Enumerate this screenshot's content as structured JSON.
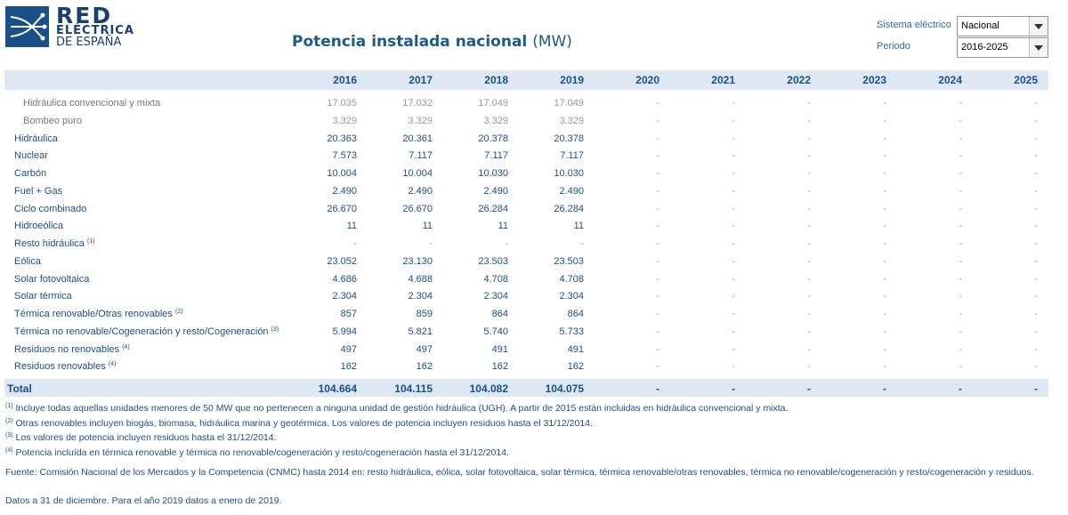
{
  "header": {
    "logo": {
      "line1": "RED",
      "line2": "ELÉCTRICA",
      "line3": "DE ESPAÑA"
    },
    "title": "Potencia instalada nacional",
    "unit": "(MW)"
  },
  "controls": [
    {
      "label": "Sistema eléctrico",
      "value": "Nacional"
    },
    {
      "label": "Periodo",
      "value": "2016-2025"
    }
  ],
  "table": {
    "columns": [
      "2016",
      "2017",
      "2018",
      "2019",
      "2020",
      "2021",
      "2022",
      "2023",
      "2024",
      "2025"
    ],
    "rows": [
      {
        "label": "Hidráulica convencional y mixta",
        "indent": true,
        "values": [
          "17.035",
          "17.032",
          "17.049",
          "17.049",
          "-",
          "-",
          "-",
          "-",
          "-",
          "-"
        ]
      },
      {
        "label": "Bombeo puro",
        "indent": true,
        "values": [
          "3.329",
          "3.329",
          "3.329",
          "3.329",
          "-",
          "-",
          "-",
          "-",
          "-",
          "-"
        ]
      },
      {
        "label": "Hidráulica",
        "values": [
          "20.363",
          "20.361",
          "20.378",
          "20.378",
          "-",
          "-",
          "-",
          "-",
          "-",
          "-"
        ]
      },
      {
        "label": "Nuclear",
        "values": [
          "7.573",
          "7.117",
          "7.117",
          "7.117",
          "-",
          "-",
          "-",
          "-",
          "-",
          "-"
        ]
      },
      {
        "label": "Carbón",
        "values": [
          "10.004",
          "10.004",
          "10.030",
          "10.030",
          "-",
          "-",
          "-",
          "-",
          "-",
          "-"
        ]
      },
      {
        "label": "Fuel + Gas",
        "values": [
          "2.490",
          "2.490",
          "2.490",
          "2.490",
          "-",
          "-",
          "-",
          "-",
          "-",
          "-"
        ]
      },
      {
        "label": "Ciclo combinado",
        "values": [
          "26.670",
          "26.670",
          "26.284",
          "26.284",
          "-",
          "-",
          "-",
          "-",
          "-",
          "-"
        ]
      },
      {
        "label": "Hidroeólica",
        "values": [
          "11",
          "11",
          "11",
          "11",
          "-",
          "-",
          "-",
          "-",
          "-",
          "-"
        ]
      },
      {
        "label": "Resto hidráulica",
        "note": "(1)",
        "values": [
          "-",
          "-",
          "-",
          "-",
          "-",
          "-",
          "-",
          "-",
          "-",
          "-"
        ]
      },
      {
        "label": "Eólica",
        "values": [
          "23.052",
          "23.130",
          "23.503",
          "23.503",
          "-",
          "-",
          "-",
          "-",
          "-",
          "-"
        ]
      },
      {
        "label": "Solar fotovoltaica",
        "values": [
          "4.686",
          "4.688",
          "4.708",
          "4.708",
          "-",
          "-",
          "-",
          "-",
          "-",
          "-"
        ]
      },
      {
        "label": "Solar térmica",
        "values": [
          "2.304",
          "2.304",
          "2.304",
          "2.304",
          "-",
          "-",
          "-",
          "-",
          "-",
          "-"
        ]
      },
      {
        "label": "Térmica renovable/Otras renovables",
        "note": "(2)",
        "values": [
          "857",
          "859",
          "864",
          "864",
          "-",
          "-",
          "-",
          "-",
          "-",
          "-"
        ]
      },
      {
        "label": "Térmica no renovable/Cogeneración y resto/Cogeneración",
        "note": "(3)",
        "values": [
          "5.994",
          "5.821",
          "5.740",
          "5.733",
          "-",
          "-",
          "-",
          "-",
          "-",
          "-"
        ]
      },
      {
        "label": "Residuos no renovables",
        "note": "(4)",
        "values": [
          "497",
          "497",
          "491",
          "491",
          "-",
          "-",
          "-",
          "-",
          "-",
          "-"
        ]
      },
      {
        "label": "Residuos renovables",
        "note": "(4)",
        "values": [
          "162",
          "162",
          "162",
          "162",
          "-",
          "-",
          "-",
          "-",
          "-",
          "-"
        ]
      }
    ],
    "total": {
      "label": "Total",
      "values": [
        "104.664",
        "104.115",
        "104.082",
        "104.075",
        "-",
        "-",
        "-",
        "-",
        "-",
        "-"
      ]
    }
  },
  "footnotes": [
    {
      "marker": "(1)",
      "text": "Incluye todas aquellas unidades menores de 50 MW que no pertenecen a ninguna unidad de gestión hidráulica (UGH). A partir de 2015 están incluidas en hidráulica convencional y mixta."
    },
    {
      "marker": "(2)",
      "text": "Otras renovables incluyen biogás, biomasa, hidráulica marina y geotérmica. Los valores de potencia incluyen residuos hasta el 31/12/2014."
    },
    {
      "marker": "(3)",
      "text": "Los valores de potencia incluyen residuos hasta el 31/12/2014."
    },
    {
      "marker": "(4)",
      "text": "Potencia incluída en térmica renovable y térmica no renovable/cogeneración y resto/cogeneración hasta el 31/12/2014."
    }
  ],
  "source": "Fuente: Comisión Nacional de los Mercados y la Competencia (CNMC) hasta 2014 en: resto hidráulica, eólica, solar fotovoltaica, solar térmica, térmica renovable/otras renovables, térmica no renovable/cogeneración y resto/cogeneración y residuos.",
  "note": "Datos a 31 de diciembre. Para el año 2019 datos a enero de 2019."
}
